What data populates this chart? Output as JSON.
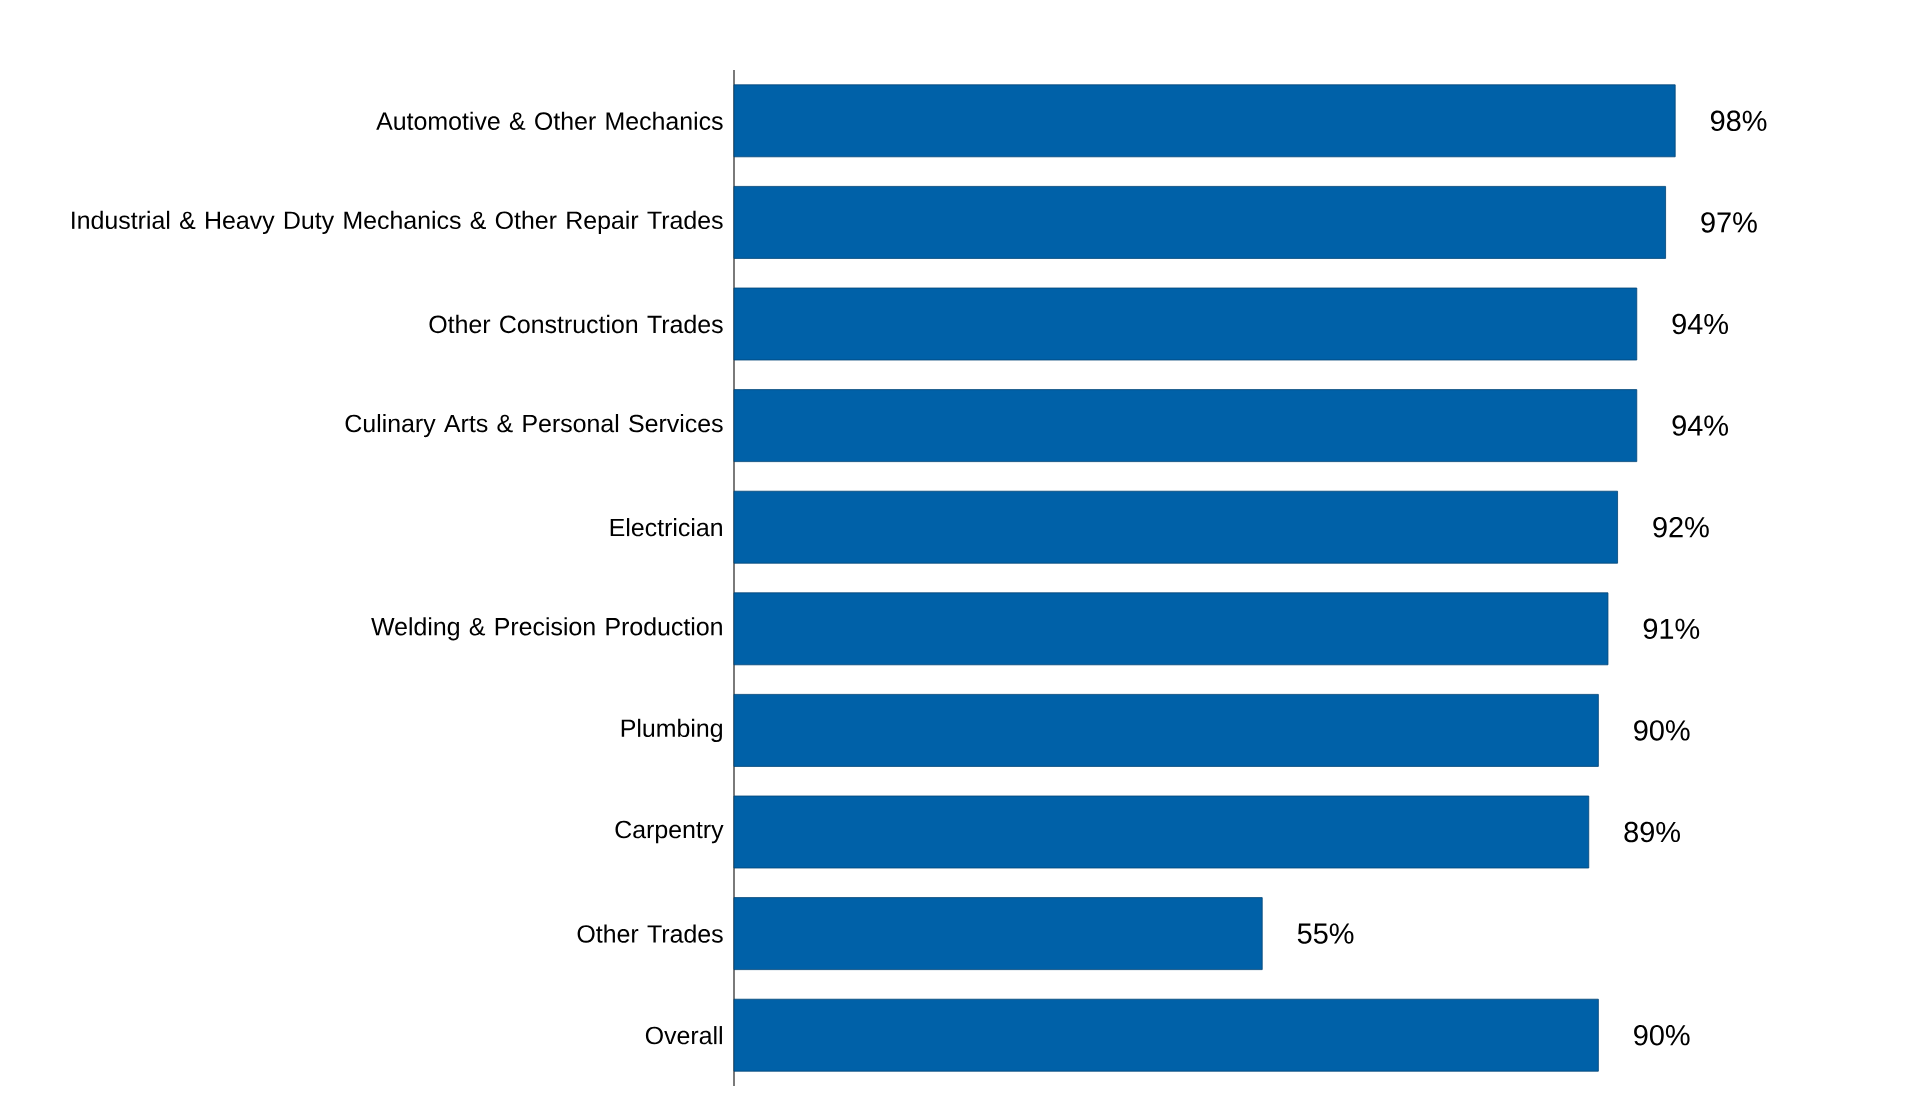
{
  "chart_data": {
    "type": "bar",
    "orientation": "horizontal",
    "categories": [
      "Automotive & Other Mechanics",
      "Industrial & Heavy Duty Mechanics & Other Repair Trades",
      "Other Construction Trades",
      "Culinary Arts & Personal Services",
      "Electrician",
      "Welding & Precision Production",
      "Plumbing",
      "Carpentry",
      "Other Trades",
      "Overall"
    ],
    "values": [
      98,
      97,
      94,
      94,
      92,
      91,
      90,
      89,
      55,
      90
    ],
    "value_labels": [
      "98%",
      "97%",
      "94%",
      "94%",
      "92%",
      "91%",
      "90%",
      "89%",
      "55%",
      "90%"
    ],
    "color": "#0061a8",
    "tick_labels": "y"
  }
}
